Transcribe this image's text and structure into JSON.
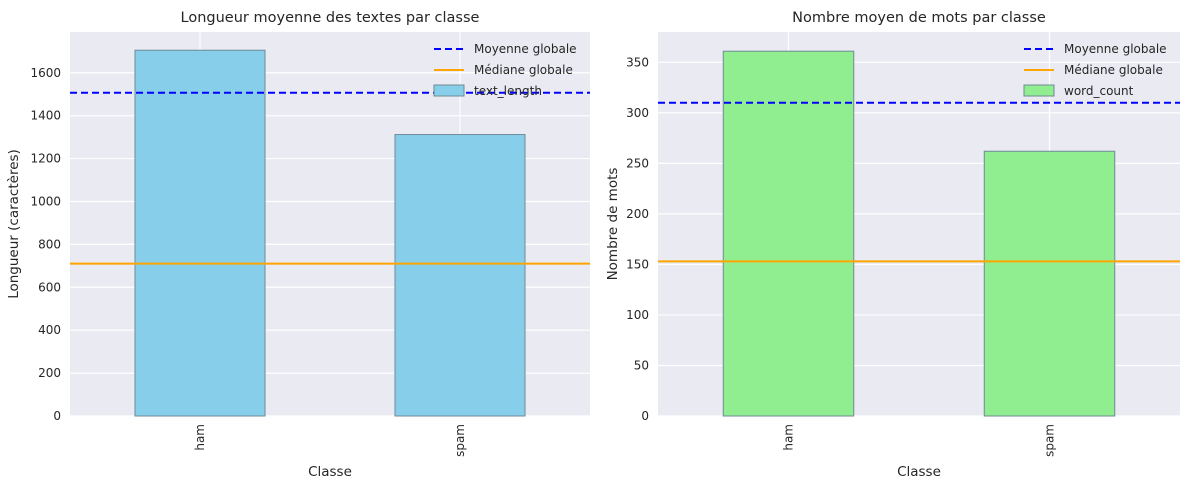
{
  "chart_data": [
    {
      "type": "bar",
      "title": "Longueur moyenne des textes par classe",
      "xlabel": "Classe",
      "ylabel": "Longueur (caractères)",
      "categories": [
        "ham",
        "spam"
      ],
      "series": [
        {
          "name": "text_length",
          "values": [
            1705,
            1312
          ]
        }
      ],
      "bar_color": "#87ceeb",
      "ylim": [
        0,
        1790
      ],
      "yticks": [
        0,
        200,
        400,
        600,
        800,
        1000,
        1200,
        1400,
        1600
      ],
      "reference_lines": [
        {
          "name": "Moyenne globale",
          "value": 1507,
          "color": "#0000ff",
          "style": "dashed"
        },
        {
          "name": "Médiane globale",
          "value": 710,
          "color": "#ffa500",
          "style": "solid"
        }
      ],
      "legend": "top-right",
      "grid": true
    },
    {
      "type": "bar",
      "title": "Nombre moyen de mots par classe",
      "xlabel": "Classe",
      "ylabel": "Nombre de mots",
      "categories": [
        "ham",
        "spam"
      ],
      "series": [
        {
          "name": "word_count",
          "values": [
            361,
            262
          ]
        }
      ],
      "bar_color": "#90ee90",
      "ylim": [
        0,
        380
      ],
      "yticks": [
        0,
        50,
        100,
        150,
        200,
        250,
        300,
        350
      ],
      "reference_lines": [
        {
          "name": "Moyenne globale",
          "value": 310,
          "color": "#0000ff",
          "style": "dashed"
        },
        {
          "name": "Médiane globale",
          "value": 153,
          "color": "#ffa500",
          "style": "solid"
        }
      ],
      "legend": "top-right",
      "grid": true
    }
  ]
}
